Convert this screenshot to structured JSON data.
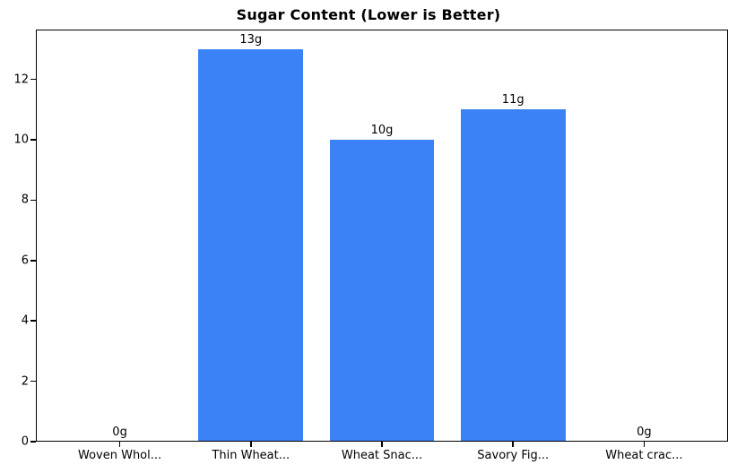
{
  "chart_data": {
    "type": "bar",
    "title": "Sugar Content (Lower is Better)",
    "categories": [
      "Woven Whol...",
      "Thin Wheat...",
      "Wheat Snac...",
      "Savory Fig...",
      "Wheat crac..."
    ],
    "values": [
      0,
      13,
      10,
      11,
      0
    ],
    "bar_labels": [
      "0g",
      "13g",
      "10g",
      "11g",
      "0g"
    ],
    "yticks": [
      0,
      2,
      4,
      6,
      8,
      10,
      12
    ],
    "ylim": [
      0,
      13.65
    ],
    "xlim": [
      -0.64,
      4.64
    ],
    "xlabel": "",
    "ylabel": "",
    "bar_width": 0.8,
    "grid": false,
    "legend": false,
    "colors": {
      "bar": "#3b82f6",
      "text": "#000000",
      "axis": "#000000",
      "background": "#ffffff"
    }
  }
}
